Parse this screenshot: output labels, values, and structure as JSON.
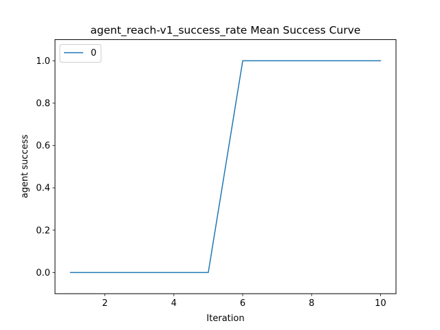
{
  "chart_data": {
    "type": "line",
    "title": "agent_reach-v1_success_rate Mean Success Curve",
    "xlabel": "Iteration",
    "ylabel": "agent success",
    "x": [
      1,
      2,
      3,
      4,
      5,
      6,
      7,
      8,
      9,
      10
    ],
    "series": [
      {
        "name": "0",
        "color": "#1f77b4",
        "values": [
          0,
          0,
          0,
          0,
          0,
          1,
          1,
          1,
          1,
          1
        ]
      }
    ],
    "xlim": [
      0.55,
      10.45
    ],
    "ylim": [
      -0.1,
      1.1
    ],
    "xticks": [
      2,
      4,
      6,
      8,
      10
    ],
    "xtick_labels": [
      "2",
      "4",
      "6",
      "8",
      "10"
    ],
    "yticks": [
      0.0,
      0.2,
      0.4,
      0.6,
      0.8,
      1.0
    ],
    "ytick_labels": [
      "0.0",
      "0.2",
      "0.4",
      "0.6",
      "0.8",
      "1.0"
    ],
    "grid": false,
    "legend_position": "top-left"
  }
}
